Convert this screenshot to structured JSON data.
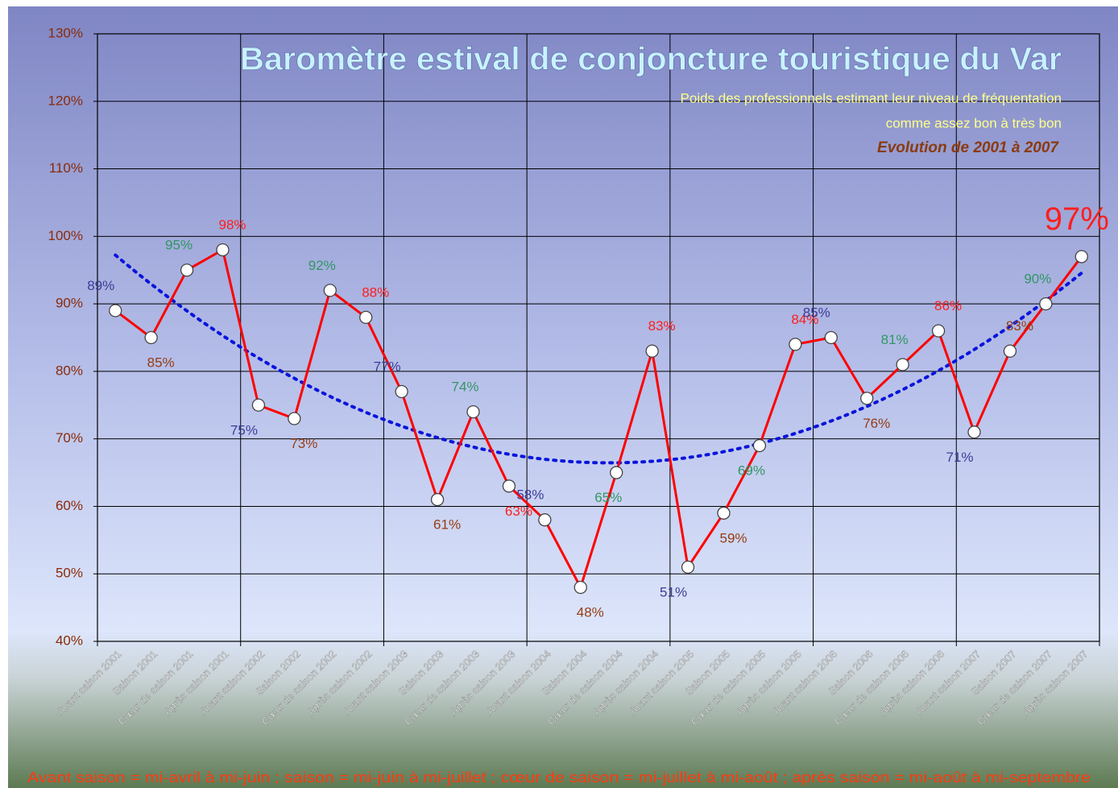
{
  "chart_data": {
    "type": "line",
    "title": "Baromètre estival de conjoncture touristique du Var",
    "subtitle": [
      "Poids des professionnels estimant leur niveau de fréquentation",
      "comme assez bon à très bon"
    ],
    "period": "Evolution de 2001 à 2007",
    "footnote": "Avant saison = mi-avril à mi-juin ; saison = mi-juin à mi-juillet ; cœur de saison = mi-juillet à mi-août ; après saison = mi-août à mi-septembre",
    "categories": [
      "Avant saison 2001",
      "Saison 2001",
      "Cœur de saison 2001",
      "Après saison 2001",
      "Avant saison 2002",
      "Saison 2002",
      "Cœur de saison 2002",
      "Après saison 2002",
      "Avant saison 2003",
      "Saison 2003",
      "Cœur de saison 2003",
      "Après saison 2003",
      "Avant saison 2004",
      "Saison 2004",
      "Cœur de saison 2004",
      "Après saison 2004",
      "Avant saison 2005",
      "Saison 2005",
      "Cœur de saison 2005",
      "Après saison 2005",
      "Avant saison 2006",
      "Saison 2006",
      "Cœur de saison 2006",
      "Après saison 2006",
      "Avant saison 2007",
      "Saison 2007",
      "Cœur de saison 2007",
      "Après saison 2007"
    ],
    "series": [
      {
        "color": "#ff0000",
        "values": [
          89,
          85,
          95,
          98,
          75,
          73,
          92,
          88,
          77,
          61,
          74,
          63,
          58,
          48,
          65,
          83,
          51,
          59,
          69,
          84,
          85,
          76,
          81,
          86,
          71,
          83,
          90,
          97
        ],
        "value_labels": [
          "89%",
          "85%",
          "95%",
          "98%",
          "75%",
          "73%",
          "92%",
          "88%",
          "77%",
          "61%",
          "74%",
          "63%",
          "58%",
          "48%",
          "65%",
          "83%",
          "51%",
          "59%",
          "69%",
          "84%",
          "85%",
          "76%",
          "81%",
          "86%",
          "71%",
          "83%",
          "90%",
          "97%"
        ]
      }
    ],
    "label_colors": [
      "#3c3c96",
      "#963c14",
      "#329664",
      "#ff1e1e"
    ],
    "trendline": {
      "type": "polynomial",
      "order": 2,
      "color": "#0a14dc"
    },
    "ylim": [
      40,
      130
    ],
    "yticks": [
      {
        "value": 40,
        "label": "40%"
      },
      {
        "value": 50,
        "label": "50%"
      },
      {
        "value": 60,
        "label": "60%"
      },
      {
        "value": 70,
        "label": "70%"
      },
      {
        "value": 80,
        "label": "80%"
      },
      {
        "value": 90,
        "label": "90%"
      },
      {
        "value": 100,
        "label": "100%"
      },
      {
        "value": 110,
        "label": "110%"
      },
      {
        "value": 120,
        "label": "120%"
      },
      {
        "value": 130,
        "label": "130%"
      }
    ],
    "grid": true
  }
}
